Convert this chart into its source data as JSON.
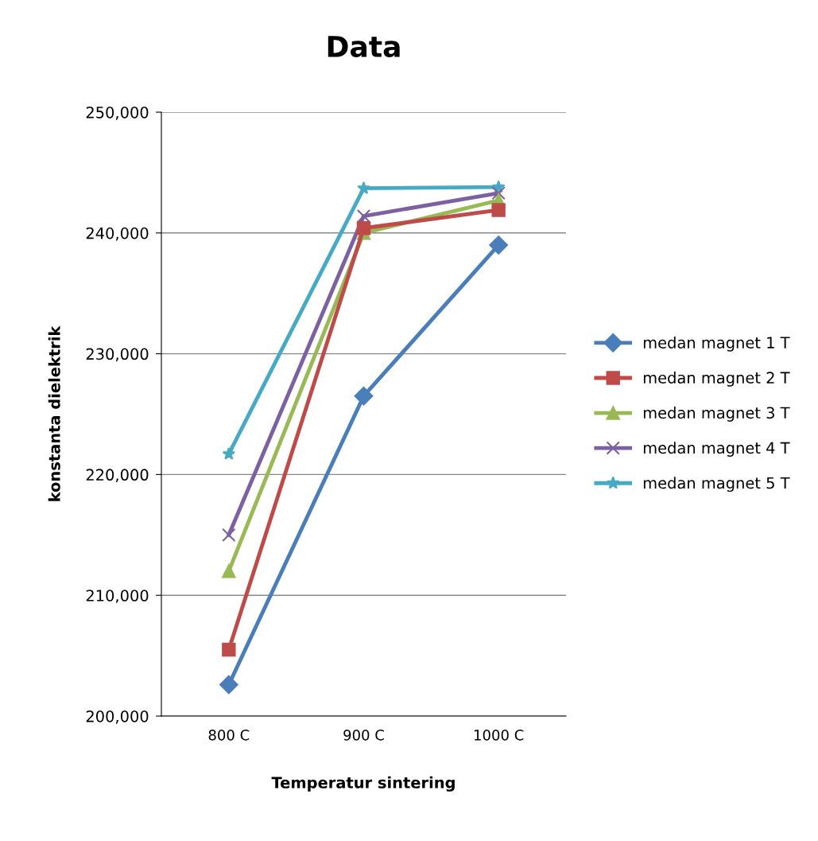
{
  "chart_data": {
    "type": "line",
    "title": "Data",
    "xlabel": "Temperatur sintering",
    "ylabel": "konstanta dielektrik",
    "categories": [
      "800 C",
      "900 C",
      "1000 C"
    ],
    "series": [
      {
        "name": "medan magnet 1 T",
        "color": "#4a7ebb",
        "marker": "diamond",
        "values": [
          202600,
          226500,
          239000
        ]
      },
      {
        "name": "medan magnet 2 T",
        "color": "#be4b48",
        "marker": "square",
        "values": [
          205500,
          240400,
          241900
        ]
      },
      {
        "name": "medan magnet 3 T",
        "color": "#98b954",
        "marker": "triangle",
        "values": [
          212000,
          240000,
          242700
        ]
      },
      {
        "name": "medan magnet 4 T",
        "color": "#7d60a0",
        "marker": "cross",
        "values": [
          215000,
          241400,
          243300
        ]
      },
      {
        "name": "medan magnet 5 T",
        "color": "#46aac5",
        "marker": "star",
        "values": [
          221700,
          243700,
          243800
        ]
      }
    ],
    "ylim": [
      200000,
      250000
    ],
    "yticks": [
      {
        "value": 200000,
        "label": "200,000"
      },
      {
        "value": 210000,
        "label": "210,000"
      },
      {
        "value": 220000,
        "label": "220,000"
      },
      {
        "value": 230000,
        "label": "230,000"
      },
      {
        "value": 240000,
        "label": "240,000"
      },
      {
        "value": 250000,
        "label": "250,000"
      }
    ],
    "grid": "y",
    "legend": "right",
    "line_style": "solid"
  }
}
